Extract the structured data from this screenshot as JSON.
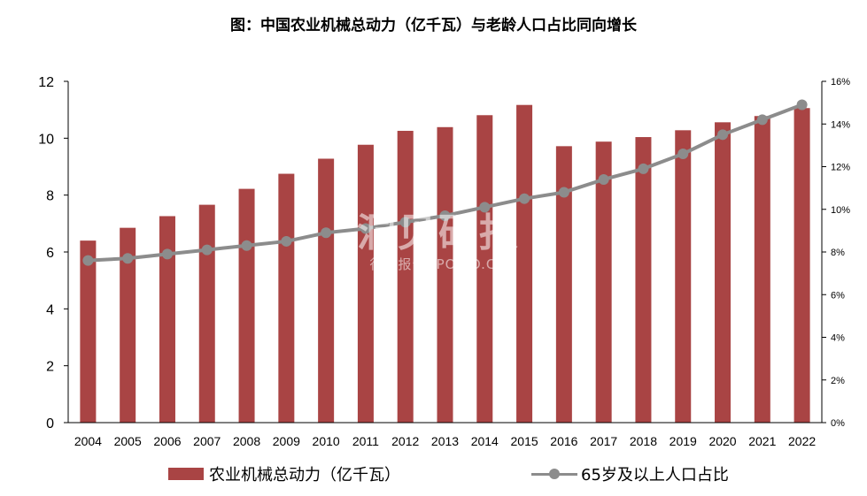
{
  "title": "图：中国农业机械总动力（亿千瓦）与老龄人口占比同向增长",
  "colors": {
    "bar": "#A94444",
    "line": "#8C8C8C",
    "axis": "#000000"
  },
  "watermark": {
    "brand": "洞见研报",
    "subtitle": "行业报告 IPOIPO.CN"
  },
  "chart_data": {
    "type": "bar",
    "categories": [
      "2004",
      "2005",
      "2006",
      "2007",
      "2008",
      "2009",
      "2010",
      "2011",
      "2012",
      "2013",
      "2014",
      "2015",
      "2016",
      "2017",
      "2018",
      "2019",
      "2020",
      "2021",
      "2022"
    ],
    "series": [
      {
        "name": "农业机械总动力（亿千瓦）",
        "type": "bar",
        "axis": "left",
        "values": [
          6.4,
          6.85,
          7.26,
          7.66,
          8.22,
          8.75,
          9.28,
          9.77,
          10.26,
          10.39,
          10.81,
          11.17,
          9.72,
          9.88,
          10.04,
          10.28,
          10.56,
          10.78,
          11.06
        ]
      },
      {
        "name": "65岁及以上人口占比",
        "type": "line",
        "axis": "right",
        "values": [
          7.6,
          7.7,
          7.9,
          8.1,
          8.3,
          8.5,
          8.9,
          9.1,
          9.4,
          9.7,
          10.1,
          10.5,
          10.8,
          11.4,
          11.9,
          12.6,
          13.5,
          14.2,
          14.9
        ]
      }
    ],
    "y_left": {
      "ylim": [
        0,
        12
      ],
      "ticks": [
        "0",
        "2",
        "4",
        "6",
        "8",
        "10",
        "12"
      ],
      "values": [
        0,
        2,
        4,
        6,
        8,
        10,
        12
      ]
    },
    "y_right": {
      "ylim": [
        0,
        16
      ],
      "ticks": [
        "0%",
        "2%",
        "4%",
        "6%",
        "8%",
        "10%",
        "12%",
        "14%",
        "16%"
      ],
      "values": [
        0,
        2,
        4,
        6,
        8,
        10,
        12,
        14,
        16
      ]
    },
    "grid": false,
    "legend": "bottom-center"
  }
}
